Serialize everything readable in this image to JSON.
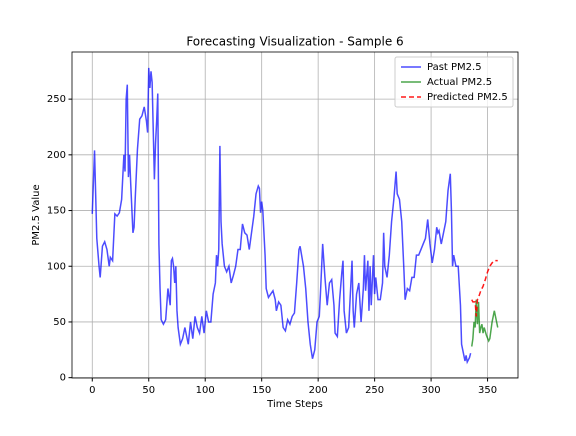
{
  "chart_data": {
    "type": "line",
    "title": "Forecasting Visualization - Sample 6",
    "xlabel": "Time Steps",
    "ylabel": "PM2.5 Value",
    "xlim": [
      -17.95,
      376.95
    ],
    "ylim": [
      -0.3,
      292.3
    ],
    "xticks": [
      0,
      50,
      100,
      150,
      200,
      250,
      300,
      350
    ],
    "yticks": [
      0,
      50,
      100,
      150,
      200,
      250
    ],
    "grid": true,
    "legend": "upper right",
    "series": [
      {
        "name": "Past PM2.5",
        "color": "#0000ff",
        "alpha": 0.7,
        "linestyle": "-",
        "x": [
          0,
          2,
          4,
          6,
          7,
          9,
          11,
          13,
          15,
          16,
          18,
          20,
          22,
          24,
          26,
          28,
          29,
          30,
          31,
          32,
          33,
          34,
          36,
          37,
          38,
          40,
          42,
          44,
          46,
          48,
          49,
          50,
          51,
          52,
          53,
          55,
          56,
          57,
          58,
          59,
          60,
          61,
          63,
          65,
          67,
          69,
          70,
          71,
          72,
          73,
          74,
          75,
          76,
          78,
          80,
          82,
          83,
          85,
          87,
          89,
          91,
          93,
          95,
          97,
          99,
          101,
          103,
          105,
          107,
          109,
          110,
          111,
          112,
          113,
          114,
          115,
          117,
          119,
          121,
          123,
          125,
          127,
          129,
          131,
          133,
          135,
          137,
          139,
          141,
          143,
          145,
          147,
          148,
          149,
          150,
          151,
          153,
          154,
          156,
          158,
          160,
          162,
          163,
          165,
          167,
          169,
          171,
          173,
          175,
          177,
          179,
          181,
          182,
          183,
          184,
          185,
          187,
          189,
          191,
          193,
          195,
          197,
          199,
          201,
          202,
          204,
          206,
          208,
          210,
          212,
          214,
          215,
          217,
          219,
          221,
          222,
          223,
          225,
          227,
          229,
          230,
          231,
          232,
          234,
          236,
          238,
          240,
          241,
          242,
          244,
          245,
          246,
          247,
          249,
          250,
          251,
          252,
          253,
          255,
          257,
          258,
          259,
          261,
          263,
          265,
          267,
          269,
          270,
          272,
          274,
          276,
          277,
          279,
          281,
          283,
          285,
          287,
          289,
          291,
          293,
          295,
          297,
          299,
          301,
          303,
          305,
          306,
          307,
          309,
          311,
          313,
          315,
          317,
          318,
          319,
          320,
          322,
          324,
          326,
          327,
          328,
          330,
          331,
          332,
          334,
          335
        ],
        "values": [
          147,
          204,
          125,
          100,
          90,
          118,
          122,
          115,
          100,
          108,
          105,
          147,
          145,
          148,
          160,
          200,
          185,
          250,
          263,
          180,
          200,
          175,
          130,
          135,
          160,
          205,
          232,
          235,
          243,
          230,
          220,
          278,
          260,
          275,
          265,
          178,
          210,
          230,
          255,
          120,
          80,
          52,
          48,
          52,
          80,
          65,
          105,
          107,
          100,
          85,
          100,
          60,
          45,
          30,
          35,
          45,
          40,
          30,
          50,
          35,
          55,
          45,
          40,
          55,
          40,
          60,
          50,
          50,
          75,
          85,
          110,
          100,
          115,
          208,
          140,
          120,
          100,
          95,
          100,
          85,
          92,
          100,
          115,
          115,
          138,
          130,
          128,
          115,
          130,
          145,
          165,
          172,
          170,
          148,
          158,
          150,
          110,
          80,
          72,
          75,
          78,
          70,
          60,
          68,
          65,
          45,
          42,
          52,
          48,
          55,
          58,
          85,
          100,
          115,
          118,
          112,
          100,
          80,
          50,
          30,
          17,
          25,
          50,
          55,
          75,
          120,
          90,
          65,
          85,
          88,
          65,
          40,
          37,
          70,
          95,
          105,
          60,
          40,
          45,
          85,
          105,
          60,
          45,
          75,
          85,
          50,
          80,
          110,
          78,
          105,
          60,
          100,
          65,
          110,
          75,
          90,
          80,
          70,
          70,
          85,
          130,
          100,
          90,
          110,
          140,
          160,
          185,
          165,
          160,
          140,
          95,
          70,
          80,
          78,
          90,
          90,
          110,
          110,
          115,
          120,
          125,
          142,
          120,
          103,
          115,
          135,
          130,
          132,
          120,
          130,
          140,
          168,
          183,
          150,
          100,
          110,
          100,
          100,
          65,
          30,
          25,
          15,
          20,
          14,
          18,
          22
        ]
      },
      {
        "name": "Actual PM2.5",
        "color": "#008000",
        "alpha": 0.7,
        "linestyle": "-",
        "x": [
          336,
          337,
          338,
          339,
          340,
          341,
          342,
          343,
          344,
          345,
          346,
          347,
          349,
          351,
          352,
          354,
          355,
          356,
          357,
          359
        ],
        "values": [
          28,
          35,
          50,
          45,
          70,
          48,
          68,
          40,
          45,
          48,
          40,
          45,
          38,
          33,
          35,
          50,
          55,
          60,
          55,
          45
        ]
      },
      {
        "name": "Predicted PM2.5",
        "color": "#ff0000",
        "alpha": 0.9,
        "linestyle": "--",
        "x": [
          336,
          337,
          339,
          340,
          341,
          342,
          344,
          346,
          348,
          350,
          352,
          354,
          356,
          359
        ],
        "values": [
          70,
          68,
          68,
          55,
          70,
          72,
          78,
          82,
          88,
          95,
          100,
          103,
          105,
          105
        ]
      }
    ]
  }
}
